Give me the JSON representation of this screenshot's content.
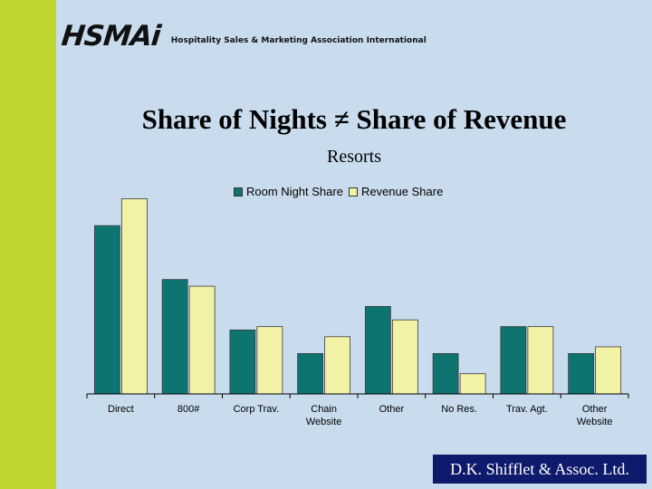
{
  "logo": {
    "mark": "HSMAi",
    "org_name": "Hospitality Sales & Marketing Association International"
  },
  "colors": {
    "side_stripe": "#bfd630",
    "background": "#c9dcee",
    "room_night_bar": "#0e7470",
    "revenue_bar": "#f2f2a6",
    "footer_box": "#0e1a6b"
  },
  "footer": {
    "credit": "D.K. Shifflet & Assoc. Ltd."
  },
  "chart_data": {
    "type": "bar",
    "title": "Share of Nights ≠ Share of Revenue",
    "subtitle": "Resorts",
    "categories": [
      "Direct",
      "800#",
      "Corp Trav.",
      "Chain Website",
      "Other",
      "No Res.",
      "Trav. Agt.",
      "Other Website"
    ],
    "category_lines": [
      [
        "Direct"
      ],
      [
        "800#"
      ],
      [
        "Corp Trav."
      ],
      [
        "Chain",
        "Website"
      ],
      [
        "Other"
      ],
      [
        "No Res."
      ],
      [
        "Trav. Agt."
      ],
      [
        "Other",
        "Website"
      ]
    ],
    "series": [
      {
        "name": "Room Night Share",
        "values": [
          25,
          17,
          9.5,
          6,
          13,
          6,
          10,
          6
        ]
      },
      {
        "name": "Revenue Share",
        "values": [
          29,
          16,
          10,
          8.5,
          11,
          3,
          10,
          7
        ]
      }
    ],
    "ylim": [
      0,
      30
    ],
    "xlabel": "",
    "ylabel": "",
    "legend_position": "top-center",
    "grid": false
  }
}
